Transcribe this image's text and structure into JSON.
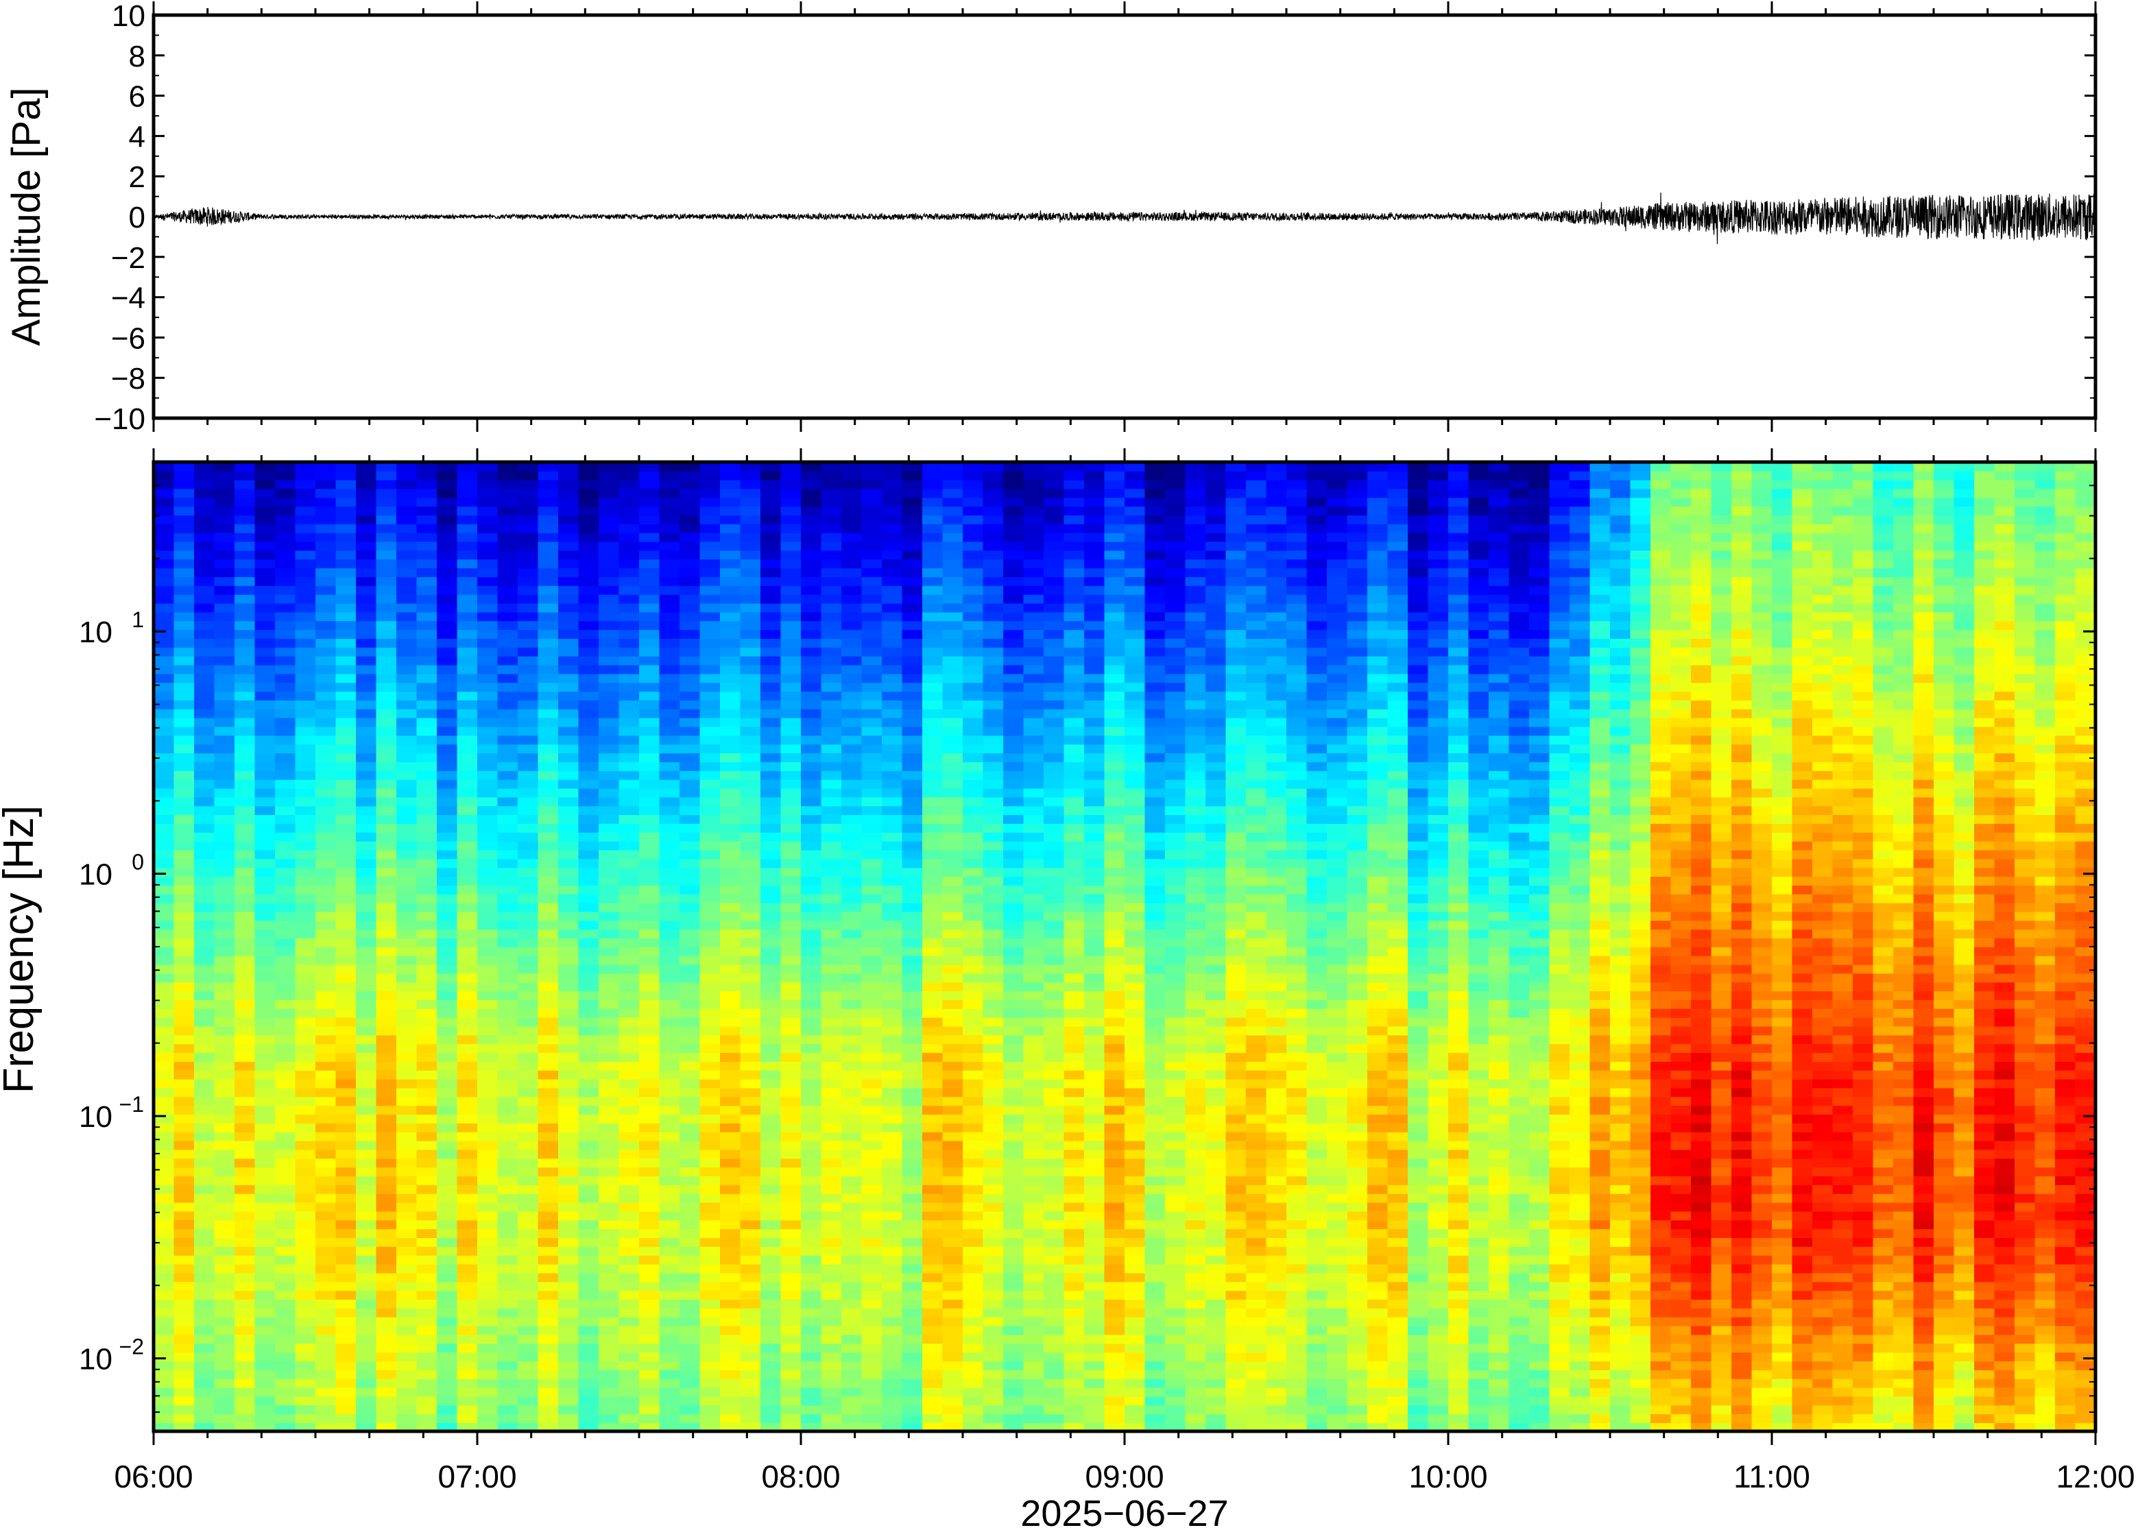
{
  "chart_data": [
    {
      "type": "line",
      "title": "",
      "xlabel": "",
      "ylabel": "Amplitude [Pa]",
      "ylim": [
        -10,
        10
      ],
      "yticks": [
        -10,
        -8,
        -6,
        -4,
        -2,
        0,
        2,
        4,
        6,
        8,
        10
      ],
      "ytick_labels": [
        "−10",
        "−8",
        "−6",
        "−4",
        "−2",
        "0",
        "2",
        "4",
        "6",
        "8",
        "10"
      ],
      "xlim": [
        "06:00",
        "12:00"
      ],
      "grid": false,
      "line_color": "#000000",
      "series": [
        {
          "x_minutes_since_06_00_step": 1,
          "envelope_x": [
            "06:00",
            "06:10",
            "06:20",
            "06:30",
            "07:00",
            "07:30",
            "08:00",
            "08:30",
            "09:00",
            "09:30",
            "10:00",
            "10:15",
            "10:30",
            "10:40",
            "11:00",
            "11:30",
            "12:00"
          ],
          "envelope_halfwidth": [
            0.08,
            0.5,
            0.12,
            0.1,
            0.1,
            0.12,
            0.14,
            0.16,
            0.22,
            0.2,
            0.15,
            0.2,
            0.45,
            0.7,
            0.9,
            1.1,
            1.2
          ]
        }
      ]
    },
    {
      "type": "heatmap",
      "title": "",
      "xlabel": "2025−06−27",
      "ylabel": "Frequency [Hz]",
      "xlim": [
        "06:00",
        "12:00"
      ],
      "xticks": [
        "06:00",
        "07:00",
        "08:00",
        "09:00",
        "10:00",
        "11:00",
        "12:00"
      ],
      "ylim": [
        0.005,
        50
      ],
      "yscale": "log",
      "yticks": [
        0.01,
        0.1,
        1,
        10
      ],
      "ytick_labels": [
        {
          "base": "10",
          "exp": "−2"
        },
        {
          "base": "10",
          "exp": "−1"
        },
        {
          "base": "10",
          "exp": "0"
        },
        {
          "base": "10",
          "exp": "1"
        }
      ],
      "colormap": "jet",
      "grid": false,
      "regimes": [
        {
          "from": "06:00",
          "to": "10:20",
          "description_level": "quiet"
        },
        {
          "from": "10:20",
          "to": "10:40",
          "description_level": "transition"
        },
        {
          "from": "10:40",
          "to": "12:00",
          "description_level": "noisy"
        }
      ]
    }
  ]
}
